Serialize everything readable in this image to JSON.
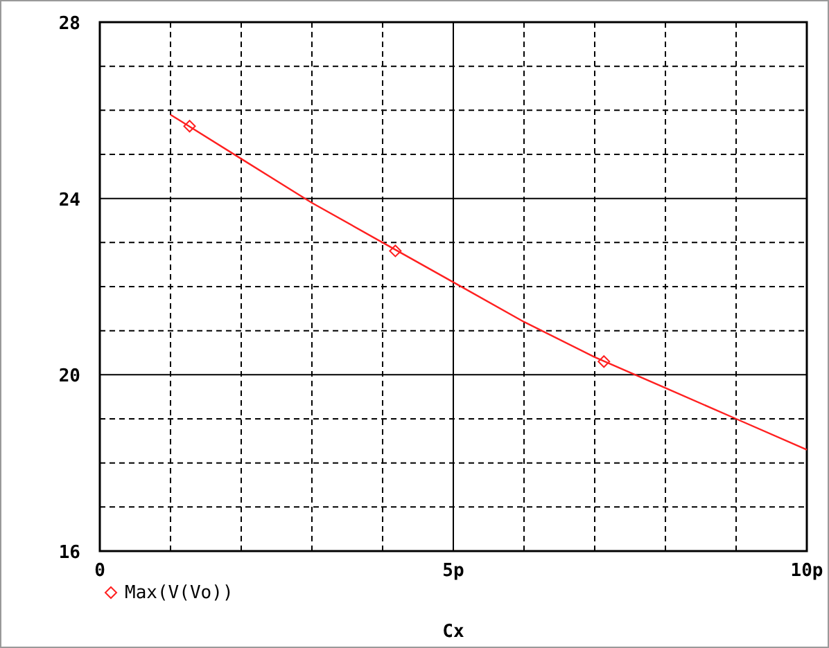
{
  "chart_data": {
    "type": "line",
    "xlabel": "Cx",
    "xlim": [
      0,
      10
    ],
    "ylim": [
      16,
      28
    ],
    "xticks": [
      0,
      {
        "value": 1,
        "label": null
      },
      {
        "value": 2,
        "label": null
      },
      {
        "value": 3,
        "label": null
      },
      {
        "value": 4,
        "label": null
      },
      {
        "value": 5,
        "label": "5p"
      },
      {
        "value": 6,
        "label": null
      },
      {
        "value": 7,
        "label": null
      },
      {
        "value": 8,
        "label": null
      },
      {
        "value": 9,
        "label": null
      },
      {
        "value": 10,
        "label": "10p"
      }
    ],
    "yticks": [
      16,
      {
        "value": 17,
        "label": null
      },
      {
        "value": 18,
        "label": null
      },
      {
        "value": 19,
        "label": null
      },
      20,
      {
        "value": 21,
        "label": null
      },
      {
        "value": 22,
        "label": null
      },
      {
        "value": 23,
        "label": null
      },
      24,
      {
        "value": 25,
        "label": null
      },
      {
        "value": 26,
        "label": null
      },
      {
        "value": 27,
        "label": null
      },
      28
    ],
    "grid": true,
    "legend": "bottom left",
    "series": [
      {
        "color": "#ff2020",
        "marker": "none",
        "x": [
          1,
          2,
          3,
          4,
          5,
          6,
          7,
          8,
          9,
          10
        ],
        "values": [
          25.9,
          24.9,
          23.9,
          23.0,
          22.1,
          21.2,
          20.4,
          19.7,
          19.0,
          18.3
        ]
      },
      {
        "type": "scatter",
        "name": "Max(V(Vo))",
        "color": "#ff2020",
        "marker": "diamond",
        "x": [
          1.27,
          4.18,
          7.13
        ],
        "values": [
          25.64,
          22.81,
          20.3
        ]
      }
    ]
  }
}
